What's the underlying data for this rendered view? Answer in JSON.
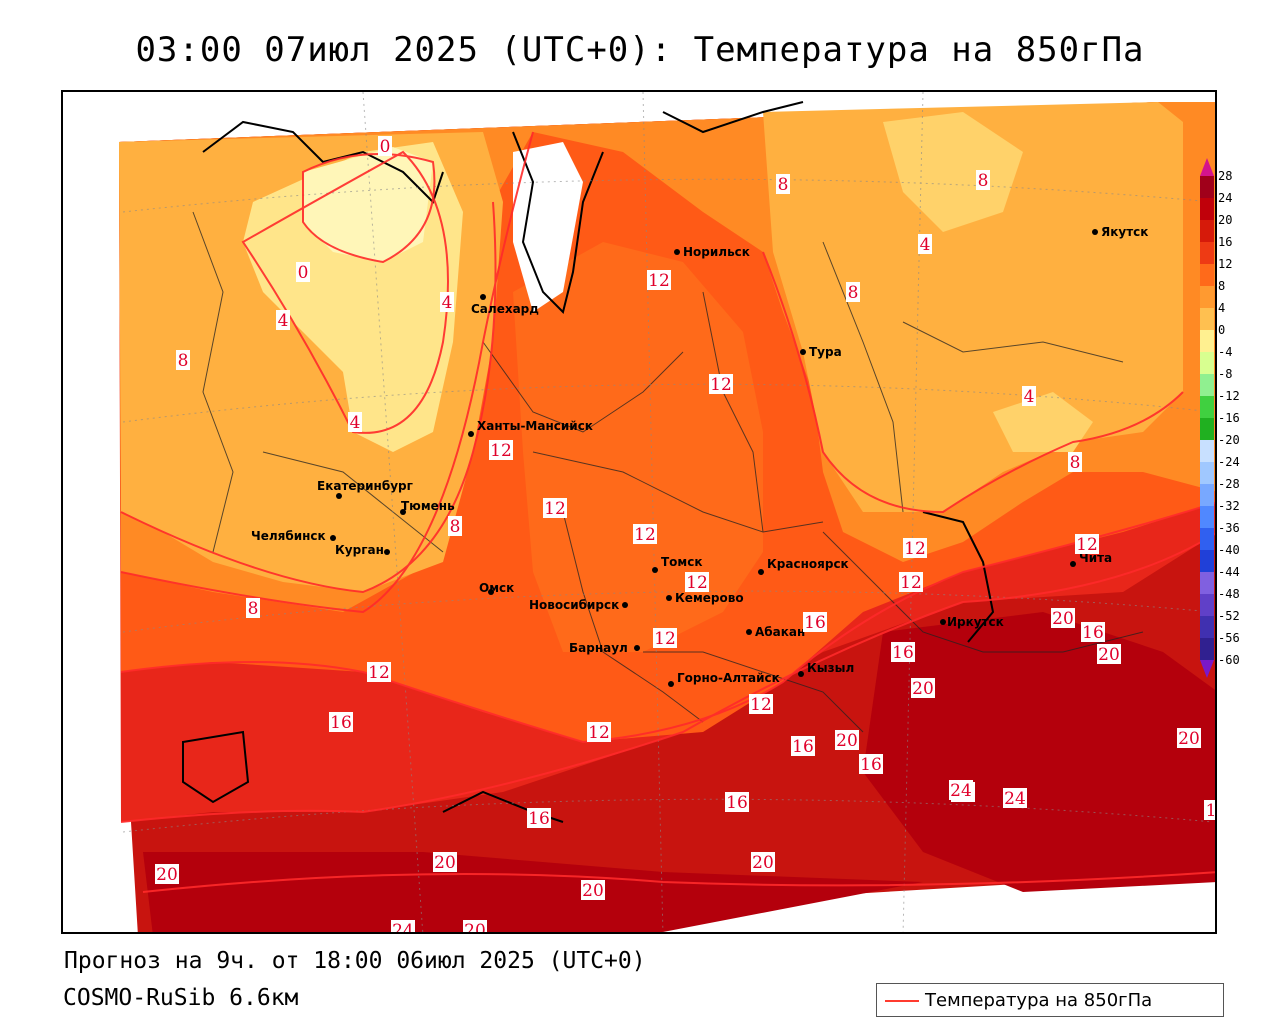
{
  "header": {
    "title": "03:00 07июл 2025 (UTC+0): Температура на 850гПа"
  },
  "footer": {
    "forecast": "Прогноз на 9ч. от 18:00 06июл 2025 (UTC+0)",
    "model": "COSMO-RuSib 6.6км"
  },
  "legend": {
    "label": "Температура на 850гПа",
    "line_color": "#ff3b2f"
  },
  "colorbar": {
    "ticks": [
      "28",
      "24",
      "20",
      "16",
      "12",
      "8",
      "4",
      "0",
      "-4",
      "-8",
      "-12",
      "-16",
      "-20",
      "-24",
      "-28",
      "-32",
      "-36",
      "-40",
      "-44",
      "-48",
      "-52",
      "-56",
      "-60"
    ],
    "colors": [
      "#a0001a",
      "#c0000a",
      "#d61a0a",
      "#ee3a14",
      "#ff6a1a",
      "#ff9a30",
      "#ffc050",
      "#fff090",
      "#d8ff90",
      "#90f090",
      "#40d040",
      "#20b020",
      "#c8e0ff",
      "#a0c8ff",
      "#78a8ff",
      "#5088ff",
      "#3060f0",
      "#2040d8",
      "#8060e0",
      "#6040c8",
      "#4030b0",
      "#302090"
    ]
  },
  "cities": [
    {
      "name": "Норильск"
    },
    {
      "name": "Салехард"
    },
    {
      "name": "Тура"
    },
    {
      "name": "Якутск"
    },
    {
      "name": "Ханты-Мансийск"
    },
    {
      "name": "Екатеринбург"
    },
    {
      "name": "Тюмень"
    },
    {
      "name": "Челябинск"
    },
    {
      "name": "Курган"
    },
    {
      "name": "Омск"
    },
    {
      "name": "Новосибирск"
    },
    {
      "name": "Томск"
    },
    {
      "name": "Кемерово"
    },
    {
      "name": "Красноярск"
    },
    {
      "name": "Барнаул"
    },
    {
      "name": "Абакан"
    },
    {
      "name": "Горно-Алтайск"
    },
    {
      "name": "Кызыл"
    },
    {
      "name": "Иркутск"
    },
    {
      "name": "Чита"
    }
  ],
  "isolines": [
    {
      "v": "0"
    },
    {
      "v": "0"
    },
    {
      "v": "4"
    },
    {
      "v": "4"
    },
    {
      "v": "4"
    },
    {
      "v": "4"
    },
    {
      "v": "4"
    },
    {
      "v": "8"
    },
    {
      "v": "8"
    },
    {
      "v": "8"
    },
    {
      "v": "8"
    },
    {
      "v": "8"
    },
    {
      "v": "8"
    },
    {
      "v": "8"
    },
    {
      "v": "12"
    },
    {
      "v": "12"
    },
    {
      "v": "12"
    },
    {
      "v": "12"
    },
    {
      "v": "12"
    },
    {
      "v": "12"
    },
    {
      "v": "12"
    },
    {
      "v": "12"
    },
    {
      "v": "12"
    },
    {
      "v": "12"
    },
    {
      "v": "12"
    },
    {
      "v": "12"
    },
    {
      "v": "12"
    },
    {
      "v": "16"
    },
    {
      "v": "16"
    },
    {
      "v": "16"
    },
    {
      "v": "16"
    },
    {
      "v": "16"
    },
    {
      "v": "16"
    },
    {
      "v": "16"
    },
    {
      "v": "16"
    },
    {
      "v": "20"
    },
    {
      "v": "20"
    },
    {
      "v": "20"
    },
    {
      "v": "20"
    },
    {
      "v": "20"
    },
    {
      "v": "20"
    },
    {
      "v": "20"
    },
    {
      "v": "20"
    },
    {
      "v": "20"
    },
    {
      "v": "20"
    },
    {
      "v": "20"
    },
    {
      "v": "24"
    },
    {
      "v": "24"
    },
    {
      "v": "24"
    },
    {
      "v": "1"
    }
  ]
}
